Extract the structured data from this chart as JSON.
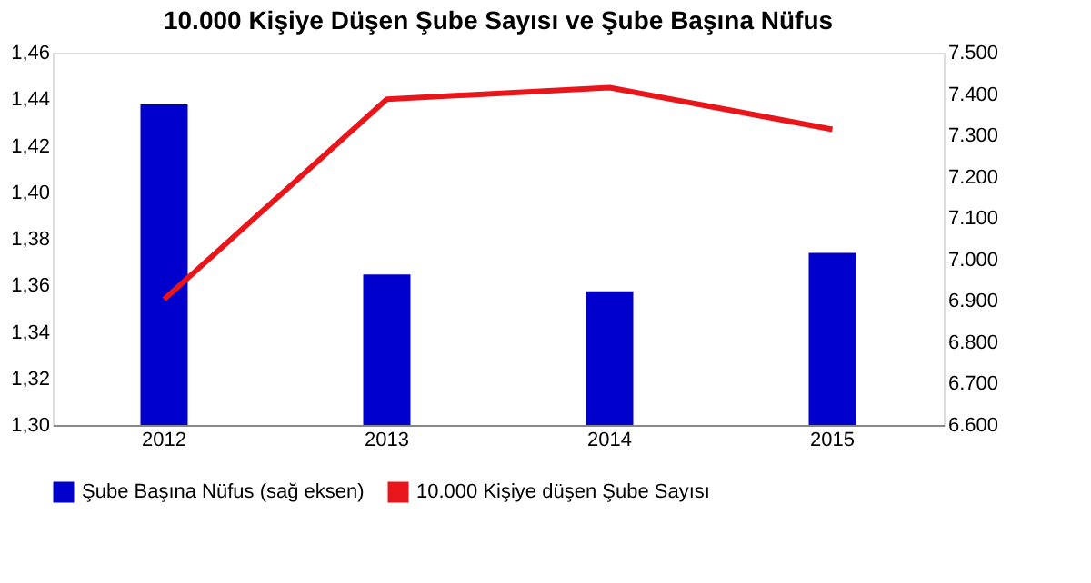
{
  "chart_data": {
    "type": "bar",
    "title": "10.000 Kişiye Düşen Şube Sayısı ve Şube Başına Nüfus",
    "categories": [
      "2012",
      "2013",
      "2014",
      "2015"
    ],
    "series": [
      {
        "name": "Şube Başına Nüfus (sağ eksen)",
        "axis": "y2",
        "color": "#0000cc",
        "values": [
          7375,
          6964,
          6923,
          7016
        ]
      },
      {
        "name": "10.000 Kişiye düşen Şube Sayısı",
        "type": "line",
        "color": "#e8161b",
        "values": [
          1.354,
          1.44,
          1.445,
          1.427
        ]
      }
    ],
    "ylim": [
      1.3,
      1.46
    ],
    "yticks": [
      {
        "value": 1.3,
        "label": "1,30"
      },
      {
        "value": 1.32,
        "label": "1,32"
      },
      {
        "value": 1.34,
        "label": "1,34"
      },
      {
        "value": 1.36,
        "label": "1,36"
      },
      {
        "value": 1.38,
        "label": "1,38"
      },
      {
        "value": 1.4,
        "label": "1,40"
      },
      {
        "value": 1.42,
        "label": "1,42"
      },
      {
        "value": 1.44,
        "label": "1,44"
      },
      {
        "value": 1.46,
        "label": "1,46"
      }
    ],
    "y2lim": [
      6600,
      7500
    ],
    "y2ticks": [
      {
        "value": 6600,
        "label": "6.600"
      },
      {
        "value": 6700,
        "label": "6.700"
      },
      {
        "value": 6800,
        "label": "6.800"
      },
      {
        "value": 6900,
        "label": "6.900"
      },
      {
        "value": 7000,
        "label": "7.000"
      },
      {
        "value": 7100,
        "label": "7.100"
      },
      {
        "value": 7200,
        "label": "7.200"
      },
      {
        "value": 7300,
        "label": "7.300"
      },
      {
        "value": 7400,
        "label": "7.400"
      },
      {
        "value": 7500,
        "label": "7.500"
      }
    ],
    "grid": false,
    "legend": "bottom",
    "marker": "none",
    "line_style": "solid"
  }
}
